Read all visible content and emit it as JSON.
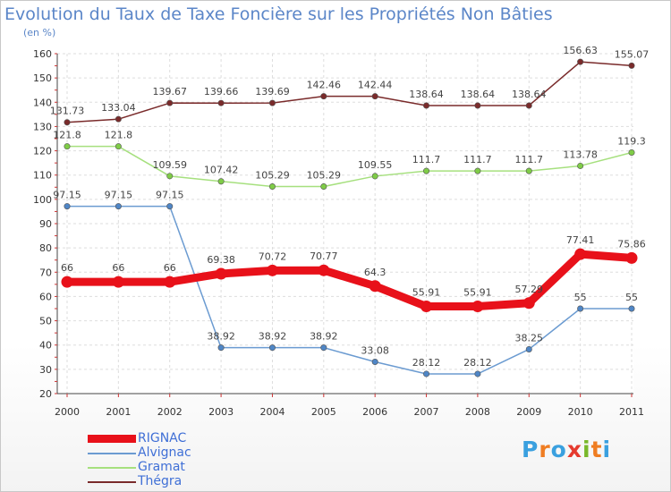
{
  "title": "Evolution du Taux de Taxe Foncière sur les Propriétés Non Bâties",
  "subtitle": "(en %)",
  "logo": [
    "P",
    "r",
    "o",
    "x",
    "i",
    "t",
    "i"
  ],
  "logo_colors": [
    "#3aa0df",
    "#ef7d22",
    "#3aa0df",
    "#e53a2e",
    "#79b82b",
    "#ef7d22",
    "#3aa0df"
  ],
  "chart_data": {
    "type": "line",
    "title": "Evolution du Taux de Taxe Foncière sur les Propriétés Non Bâties",
    "ylabel": "(en %)",
    "xlabel": "",
    "x": [
      "2000",
      "2001",
      "2002",
      "2003",
      "2004",
      "2005",
      "2006",
      "2007",
      "2008",
      "2009",
      "2010",
      "2011"
    ],
    "ylim": [
      20,
      160
    ],
    "yticks": [
      20,
      30,
      40,
      50,
      60,
      70,
      80,
      90,
      100,
      110,
      120,
      130,
      140,
      150,
      160
    ],
    "grid": true,
    "legend_position": "bottom-left",
    "series": [
      {
        "name": "RIGNAC",
        "color": "#e8111a",
        "marker": "#e8111a",
        "thick": true,
        "values": [
          66,
          66,
          66,
          69.38,
          70.72,
          70.77,
          64.3,
          55.91,
          55.91,
          57.29,
          77.41,
          75.86
        ],
        "labels": [
          "66",
          "66",
          "66",
          "69.38",
          "70.72",
          "70.77",
          "64.3",
          "55.91",
          "55.91",
          "57.29",
          "77.41",
          "75.86"
        ]
      },
      {
        "name": "Alvignac",
        "color": "#6b9bd1",
        "marker": "#4f86c6",
        "values": [
          97.15,
          97.15,
          97.15,
          38.92,
          38.92,
          38.92,
          33.08,
          28.12,
          28.12,
          38.25,
          55,
          55
        ],
        "labels": [
          "97.15",
          "97.15",
          "97.15",
          "38.92",
          "38.92",
          "38.92",
          "33.08",
          "28.12",
          "28.12",
          "38.25",
          "55",
          "55"
        ]
      },
      {
        "name": "Gramat",
        "color": "#a6e07e",
        "marker": "#7fcc47",
        "values": [
          121.8,
          121.8,
          109.59,
          107.42,
          105.29,
          105.29,
          109.55,
          111.7,
          111.7,
          111.7,
          113.78,
          119.3
        ],
        "labels": [
          "121.8",
          "121.8",
          "109.59",
          "107.42",
          "105.29",
          "105.29",
          "109.55",
          "111.7",
          "111.7",
          "111.7",
          "113.78",
          "119.3"
        ]
      },
      {
        "name": "Thégra",
        "color": "#7a2b2b",
        "marker": "#7a2b2b",
        "values": [
          131.73,
          133.04,
          139.67,
          139.66,
          139.69,
          142.46,
          142.44,
          138.64,
          138.64,
          138.64,
          156.63,
          155.07
        ],
        "labels": [
          "131.73",
          "133.04",
          "139.67",
          "139.66",
          "139.69",
          "142.46",
          "142.44",
          "138.64",
          "138.64",
          "138.64",
          "156.63",
          "155.07"
        ]
      }
    ]
  }
}
